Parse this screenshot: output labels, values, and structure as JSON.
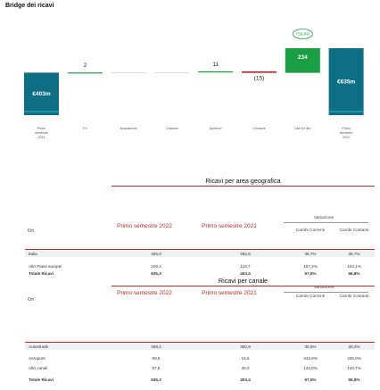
{
  "title": "Bridge dei ricavi",
  "colors": {
    "start_bar": "#0e6e83",
    "positive": "#1a9f45",
    "negative": "#c0282d",
    "neutral": "#7a7a7a",
    "accent": "#c0282d"
  },
  "bridge": {
    "categories": [
      "Primo semestre 2021",
      "FX",
      "Acquisizioni",
      "Cessioni",
      "Aperture",
      "Chiusure",
      "Like for like",
      "Primo semestre 2022"
    ],
    "cat_lines": [
      [
        "Primo",
        "semestre",
        "2021"
      ],
      [
        "FX"
      ],
      [
        "Acquisizioni"
      ],
      [
        "Cessioni"
      ],
      [
        "Aperture"
      ],
      [
        "Chiusure"
      ],
      [
        "Like for like"
      ],
      [
        "Primo",
        "semestre",
        "2022"
      ]
    ],
    "values": [
      403,
      2,
      0,
      0,
      11,
      -15,
      234,
      635
    ],
    "labels": [
      "€403m",
      "2",
      "",
      "",
      "11",
      "(15)",
      "234",
      "€635m"
    ],
    "kinds": [
      "total",
      "delta",
      "delta",
      "delta",
      "delta",
      "delta",
      "delta",
      "total"
    ],
    "badge": "+59,9%",
    "ylim": [
      0,
      700
    ]
  },
  "geo": {
    "title": "Ricavi per area geografica",
    "unit": "€m",
    "col1": "Primo semestre 2022",
    "col2": "Primo semestre 2021",
    "variation": "Variazione",
    "sub1": "Cambi Correnti",
    "sub2": "Cambi Costanti",
    "rows": [
      {
        "label": "Italia",
        "v1": "405,8",
        "v2": "292,6",
        "v3": "38,7%",
        "v4": "38,7%"
      },
      {
        "label": "Altri Paesi europei",
        "v1": "229,4",
        "v2": "110,7",
        "v3": "107,2%",
        "v4": "104,1%"
      },
      {
        "label": "Totale Ricavi",
        "v1": "635,3",
        "v2": "403,4",
        "v3": "57,5%",
        "v4": "56,8%"
      }
    ]
  },
  "channel": {
    "title": "Ricavi per canale",
    "unit": "€m",
    "col1": "Primo semestre 2022",
    "col2": "Primo semestre 2021",
    "variation": "Variazione",
    "sub1": "Cambi Correnti",
    "sub2": "Cambi Costanti",
    "rows": [
      {
        "label": "Autostrade",
        "v1": "458,2",
        "v2": "350,9",
        "v3": "30,6%",
        "v4": "30,2%"
      },
      {
        "label": "Aeroporti",
        "v1": "89,5",
        "v2": "16,5",
        "v3": "443,9%",
        "v4": "436,0%"
      },
      {
        "label": "Altri canali",
        "v1": "87,6",
        "v2": "36,0",
        "v3": "143,0%",
        "v4": "140,7%"
      },
      {
        "label": "Totale Ricavi",
        "v1": "635,3",
        "v2": "403,4",
        "v3": "57,5%",
        "v4": "56,8%"
      }
    ]
  },
  "chart_data": {
    "type": "bar",
    "title": "Bridge dei ricavi",
    "categories": [
      "Primo semestre 2021",
      "FX",
      "Acquisizioni",
      "Cessioni",
      "Aperture",
      "Chiusure",
      "Like for like",
      "Primo semestre 2022"
    ],
    "values": [
      403,
      2,
      0,
      0,
      11,
      -15,
      234,
      635
    ],
    "annotations": [
      "+59,9%"
    ]
  }
}
